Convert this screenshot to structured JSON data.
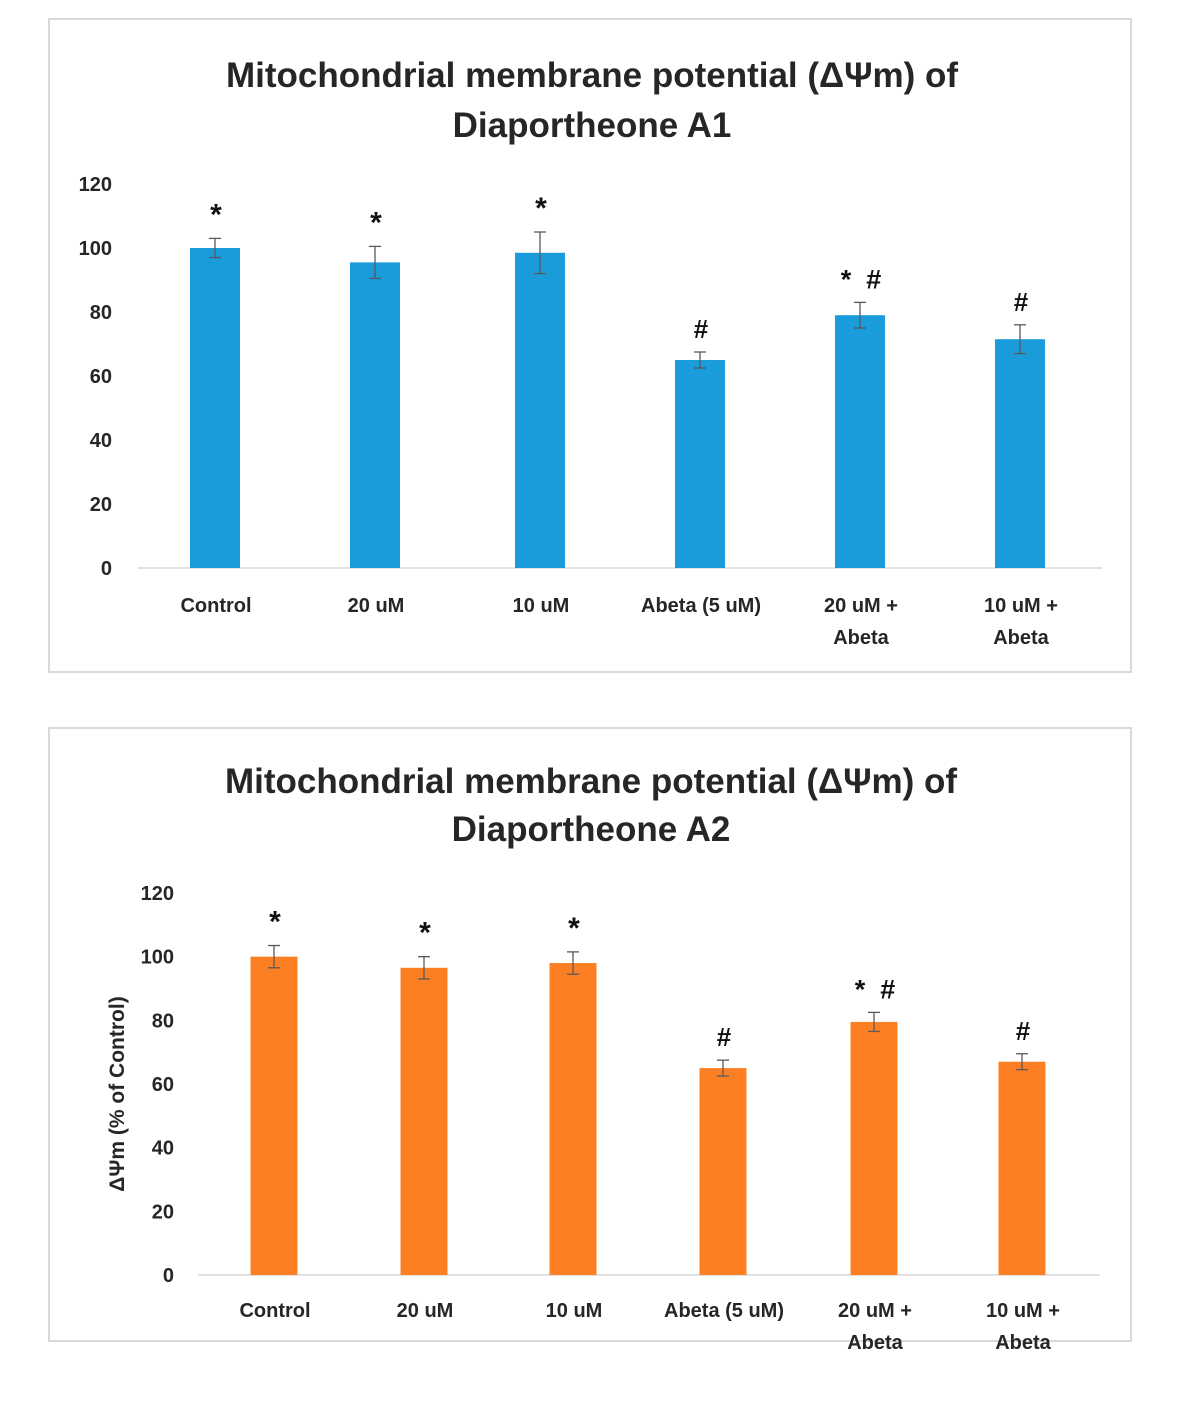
{
  "chart_data": [
    {
      "type": "bar",
      "title": "Mitochondrial membrane potential (ΔΨm) of Diaportheone A1",
      "title_lines": [
        "Mitochondrial membrane potential (ΔΨm) of",
        "Diaportheone A1"
      ],
      "xlabel": "",
      "ylabel": "",
      "ylim": [
        0,
        120
      ],
      "yticks": [
        0,
        20,
        40,
        60,
        80,
        100,
        120
      ],
      "categories": [
        "Control",
        "20 uM",
        "10 uM",
        "Abeta (5 uM)",
        "20 uM + Abeta",
        "10 uM + Abeta"
      ],
      "category_lines": [
        [
          "Control"
        ],
        [
          "20 uM"
        ],
        [
          "10 uM"
        ],
        [
          "Abeta (5 uM)"
        ],
        [
          "20 uM +",
          "Abeta"
        ],
        [
          "10 uM +",
          "Abeta"
        ]
      ],
      "values": [
        100,
        95.5,
        98.5,
        65,
        79,
        71.5
      ],
      "errors": [
        3,
        5,
        6.5,
        2.5,
        4,
        4.5
      ],
      "annotations": [
        "*",
        "*",
        "*",
        "#",
        "*  #",
        "#"
      ],
      "color": "#1A9BDA",
      "grid": false
    },
    {
      "type": "bar",
      "title": "Mitochondrial membrane potential (ΔΨm) of Diaportheone A2",
      "title_lines": [
        "Mitochondrial membrane potential (ΔΨm) of",
        "Diaportheone A2"
      ],
      "xlabel": "",
      "ylabel": "ΔΨm (% of Control)",
      "ylim": [
        0,
        120
      ],
      "yticks": [
        0,
        20,
        40,
        60,
        80,
        100,
        120
      ],
      "categories": [
        "Control",
        "20 uM",
        "10 uM",
        "Abeta (5 uM)",
        "20 uM + Abeta",
        "10 uM + Abeta"
      ],
      "category_lines": [
        [
          "Control"
        ],
        [
          "20 uM"
        ],
        [
          "10 uM"
        ],
        [
          "Abeta (5 uM)"
        ],
        [
          "20 uM +",
          "Abeta"
        ],
        [
          "10 uM +",
          "Abeta"
        ]
      ],
      "values": [
        100,
        96.5,
        98,
        65,
        79.5,
        67
      ],
      "errors": [
        3.5,
        3.5,
        3.5,
        2.5,
        3,
        2.5
      ],
      "annotations": [
        "*",
        "*",
        "*",
        "#",
        "*  #",
        "#"
      ],
      "color": "#FD7F23",
      "grid": false
    }
  ]
}
